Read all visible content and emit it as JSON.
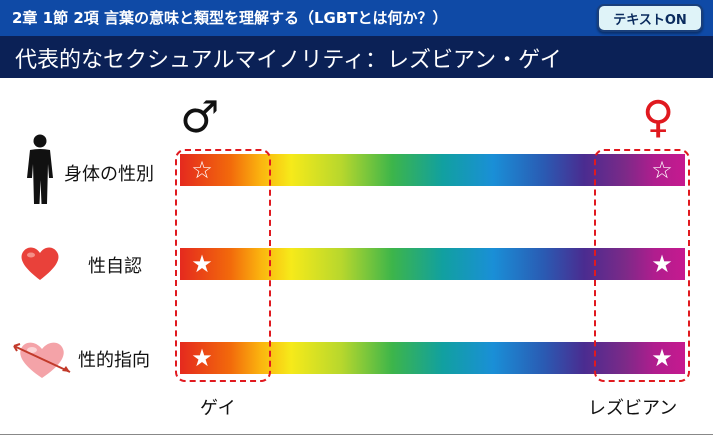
{
  "header": {
    "title": "2章 1節 2項 言葉の意味と類型を理解する（LGBTとは何か？）",
    "toggle_label": "テキストON"
  },
  "slide": {
    "title": "代表的なセクシュアルマイノリティ：レズビアン・ゲイ"
  },
  "symbols": {
    "male": "♂",
    "female": "♀"
  },
  "rows": [
    {
      "label": "身体の性別",
      "icon": "human-figure-icon",
      "left_star": "☆",
      "right_star": "☆"
    },
    {
      "label": "性自認",
      "icon": "heart-icon",
      "left_star": "★",
      "right_star": "★"
    },
    {
      "label": "性的指向",
      "icon": "heart-arrow-icon",
      "left_star": "★",
      "right_star": "★"
    }
  ],
  "bottom_labels": {
    "left": "ゲイ",
    "right": "レズビアン"
  },
  "colors": {
    "header_bg": "#0f4aa6",
    "title_bg": "#0b2156",
    "dashed_border": "#e0191f",
    "female_symbol": "#e0191f",
    "male_symbol": "#111111"
  }
}
